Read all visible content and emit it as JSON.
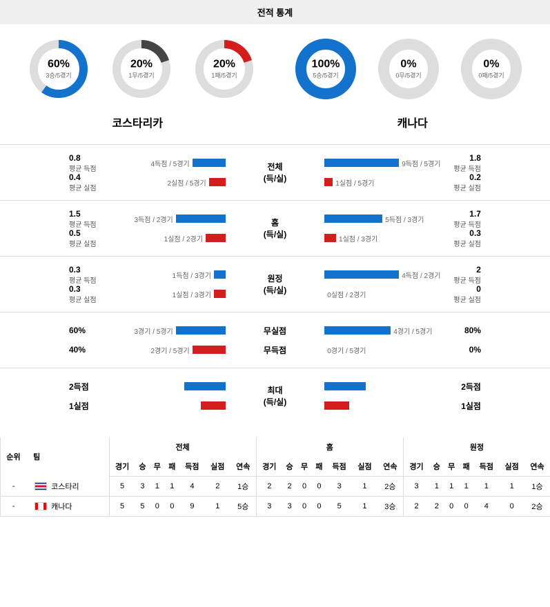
{
  "title": "전적 통계",
  "colors": {
    "blue": "#1373cc",
    "red": "#d41e1e",
    "gray": "#444444",
    "track": "#dddddd",
    "border": "#dddddd",
    "text_muted": "#666666"
  },
  "donut_stroke_width": 12,
  "donut_radius": 36,
  "teams": {
    "left": "코스타리카",
    "right": "캐나다"
  },
  "donuts_left": [
    {
      "pct": 60,
      "label": "60%",
      "sub": "3승/5경기",
      "color": "#1373cc"
    },
    {
      "pct": 20,
      "label": "20%",
      "sub": "1무/5경기",
      "color": "#444444"
    },
    {
      "pct": 20,
      "label": "20%",
      "sub": "1패/5경기",
      "color": "#d41e1e"
    }
  ],
  "donuts_right": [
    {
      "pct": 100,
      "label": "100%",
      "sub": "5승/5경기",
      "color": "#1373cc"
    },
    {
      "pct": 0,
      "label": "0%",
      "sub": "0무/5경기",
      "color": "#444444"
    },
    {
      "pct": 0,
      "label": "0%",
      "sub": "0패/5경기",
      "color": "#d41e1e"
    }
  ],
  "sections": [
    {
      "center": [
        "전체",
        "(득/실)"
      ],
      "left": [
        {
          "val": "0.8",
          "txt": "평균 득점",
          "bar_label": "4득점 / 5경기",
          "bar_pct": 40,
          "color": "#1373cc"
        },
        {
          "val": "0.4",
          "txt": "평균 실점",
          "bar_label": "2실점 / 5경기",
          "bar_pct": 20,
          "color": "#d41e1e"
        }
      ],
      "right": [
        {
          "val": "1.8",
          "txt": "평균 득점",
          "bar_label": "9득점 / 5경기",
          "bar_pct": 90,
          "color": "#1373cc"
        },
        {
          "val": "0.2",
          "txt": "평균 실점",
          "bar_label": "1실점 / 5경기",
          "bar_pct": 10,
          "color": "#d41e1e"
        }
      ]
    },
    {
      "center": [
        "홈",
        "(득/실)"
      ],
      "left": [
        {
          "val": "1.5",
          "txt": "평균 득점",
          "bar_label": "3득점 / 2경기",
          "bar_pct": 60,
          "color": "#1373cc"
        },
        {
          "val": "0.5",
          "txt": "평균 실점",
          "bar_label": "1실점 / 2경기",
          "bar_pct": 24,
          "color": "#d41e1e"
        }
      ],
      "right": [
        {
          "val": "1.7",
          "txt": "평균 득점",
          "bar_label": "5득점 / 3경기",
          "bar_pct": 70,
          "color": "#1373cc"
        },
        {
          "val": "0.3",
          "txt": "평균 실점",
          "bar_label": "1실점 / 3경기",
          "bar_pct": 14,
          "color": "#d41e1e"
        }
      ]
    },
    {
      "center": [
        "원정",
        "(득/실)"
      ],
      "left": [
        {
          "val": "0.3",
          "txt": "평균 득점",
          "bar_label": "1득점 / 3경기",
          "bar_pct": 14,
          "color": "#1373cc"
        },
        {
          "val": "0.3",
          "txt": "평균 실점",
          "bar_label": "1실점 / 3경기",
          "bar_pct": 14,
          "color": "#d41e1e"
        }
      ],
      "right": [
        {
          "val": "2",
          "txt": "평균 득점",
          "bar_label": "4득점 / 2경기",
          "bar_pct": 90,
          "color": "#1373cc"
        },
        {
          "val": "0",
          "txt": "평균 실점",
          "bar_label": "0실점 / 2경기",
          "bar_pct": 0,
          "color": "#d41e1e"
        }
      ]
    },
    {
      "center": [
        "무실점",
        "무득점"
      ],
      "left": [
        {
          "val": "60%",
          "txt": "",
          "bar_label": "3경기 / 5경기",
          "bar_pct": 60,
          "color": "#1373cc"
        },
        {
          "val": "40%",
          "txt": "",
          "bar_label": "2경기 / 5경기",
          "bar_pct": 40,
          "color": "#d41e1e"
        }
      ],
      "right": [
        {
          "val": "80%",
          "txt": "",
          "bar_label": "4경기 / 5경기",
          "bar_pct": 80,
          "color": "#1373cc"
        },
        {
          "val": "0%",
          "txt": "",
          "bar_label": "0경기 / 5경기",
          "bar_pct": 0,
          "color": "#d41e1e"
        }
      ]
    },
    {
      "center": [
        "최대",
        "(득/실)"
      ],
      "left": [
        {
          "val": "2득점",
          "txt": "",
          "bar_label": "",
          "bar_pct": 50,
          "color": "#1373cc"
        },
        {
          "val": "1실점",
          "txt": "",
          "bar_label": "",
          "bar_pct": 30,
          "color": "#d41e1e"
        }
      ],
      "right": [
        {
          "val": "2득점",
          "txt": "",
          "bar_label": "",
          "bar_pct": 50,
          "color": "#1373cc"
        },
        {
          "val": "1실점",
          "txt": "",
          "bar_label": "",
          "bar_pct": 30,
          "color": "#d41e1e"
        }
      ]
    }
  ],
  "table": {
    "groups": [
      "전체",
      "홈",
      "원정"
    ],
    "head_rank": "순위",
    "head_team": "팀",
    "cols": [
      "경기",
      "승",
      "무",
      "패",
      "득점",
      "실점",
      "연속"
    ],
    "rows": [
      {
        "rank": "-",
        "flag_class": "flag-crc",
        "team": "코스타리",
        "all": [
          5,
          3,
          1,
          1,
          4,
          2,
          "1승"
        ],
        "home": [
          2,
          2,
          0,
          0,
          3,
          1,
          "2승"
        ],
        "away": [
          3,
          1,
          1,
          1,
          1,
          1,
          "1승"
        ]
      },
      {
        "rank": "-",
        "flag_class": "flag-can",
        "team": "캐나다",
        "all": [
          5,
          5,
          0,
          0,
          9,
          1,
          "5승"
        ],
        "home": [
          3,
          3,
          0,
          0,
          5,
          1,
          "3승"
        ],
        "away": [
          2,
          2,
          0,
          0,
          4,
          0,
          "2승"
        ]
      }
    ]
  }
}
